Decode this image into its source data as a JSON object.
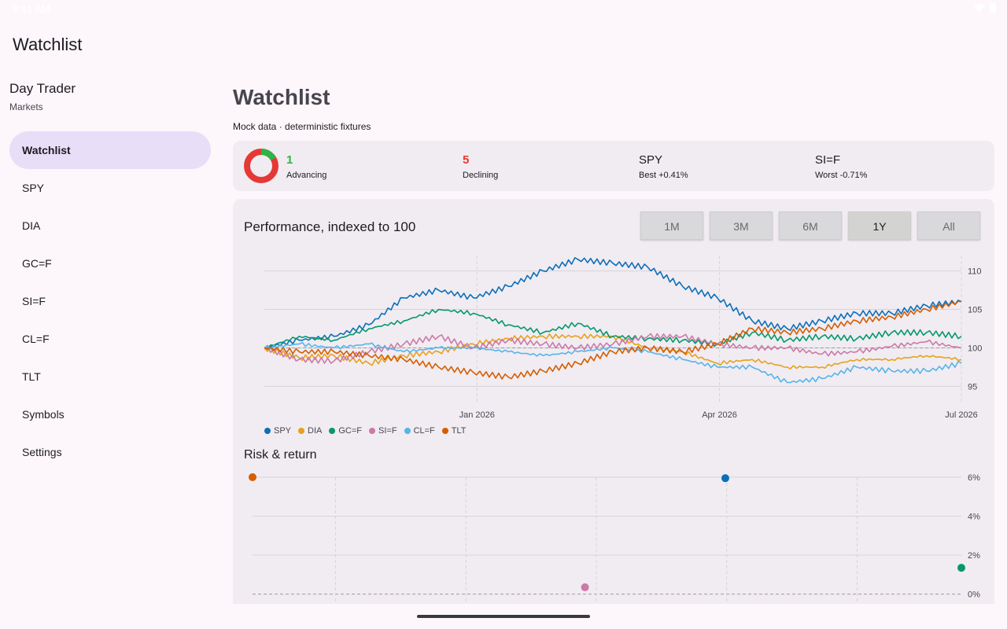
{
  "status_bar": {
    "clock": "9:41 AM"
  },
  "app_bar": {
    "title": "Watchlist"
  },
  "sidebar": {
    "title": "Day Trader",
    "subtitle": "Markets",
    "items": [
      {
        "label": "Watchlist",
        "active": true
      },
      {
        "label": "SPY"
      },
      {
        "label": "DIA"
      },
      {
        "label": "GC=F"
      },
      {
        "label": "SI=F"
      },
      {
        "label": "CL=F"
      },
      {
        "label": "TLT"
      },
      {
        "label": "Symbols"
      },
      {
        "label": "Settings"
      }
    ]
  },
  "page": {
    "title": "Watchlist",
    "subtitle": "Mock data · deterministic fixtures"
  },
  "summary": {
    "advancing": {
      "value": "1",
      "label": "Advancing"
    },
    "declining": {
      "value": "5",
      "label": "Declining"
    },
    "best": {
      "symbol": "SPY",
      "label": "Best +0.41%"
    },
    "worst": {
      "symbol": "SI=F",
      "label": "Worst -0.71%"
    },
    "donut_colors": {
      "advancing": "#2fb344",
      "declining": "#e53935"
    }
  },
  "performance": {
    "title": "Performance, indexed to 100",
    "ranges": [
      {
        "label": "1M"
      },
      {
        "label": "3M"
      },
      {
        "label": "6M"
      },
      {
        "label": "1Y",
        "active": true
      },
      {
        "label": "All"
      }
    ]
  },
  "risk": {
    "title": "Risk & return"
  },
  "colors": {
    "SPY": "#0d6fb8",
    "DIA": "#e6a21c",
    "GC=F": "#05986a",
    "SI=F": "#cc79a7",
    "CL=F": "#56b4e9",
    "TLT": "#d55e00"
  },
  "chart_data": [
    {
      "type": "line",
      "title": "Performance, indexed to 100",
      "x_ticks": [
        "Jan 2026",
        "Apr 2026",
        "Jul 2026"
      ],
      "y_ticks": [
        "95",
        "100",
        "105",
        "110"
      ],
      "ylim": [
        93,
        112
      ],
      "reference_line": 100,
      "legend_position": "bottom-left",
      "grid": true,
      "x_points": [
        0,
        0.05,
        0.1,
        0.15,
        0.2,
        0.25,
        0.3,
        0.35,
        0.4,
        0.45,
        0.5,
        0.55,
        0.6,
        0.65,
        0.7,
        0.75,
        0.8,
        0.85,
        0.9,
        0.95,
        1.0
      ],
      "series": [
        {
          "name": "SPY",
          "values": [
            100,
            101,
            101.5,
            103,
            106.5,
            107.5,
            106.5,
            108,
            110,
            111.5,
            111,
            110.5,
            108,
            106.5,
            103.5,
            102.5,
            103.5,
            104.5,
            104.5,
            105.5,
            106
          ]
        },
        {
          "name": "DIA",
          "values": [
            100,
            98.7,
            99,
            98,
            99,
            99.5,
            100.5,
            101.2,
            101.5,
            101.5,
            101.5,
            100,
            99.5,
            98,
            98.5,
            97.5,
            97.5,
            98.5,
            98.5,
            99,
            98.5
          ]
        },
        {
          "name": "GC=F",
          "values": [
            100,
            101.5,
            101,
            102.5,
            103.5,
            105,
            104.5,
            103,
            102,
            103.2,
            101.5,
            101.2,
            101,
            100.5,
            102,
            101,
            101.5,
            101.2,
            102,
            102,
            101.5
          ]
        },
        {
          "name": "SI=F",
          "values": [
            100,
            98.5,
            98.3,
            99.5,
            100.5,
            101.5,
            100,
            101,
            100.5,
            100,
            100.5,
            101.5,
            101.5,
            100.5,
            100,
            100,
            99.2,
            99.5,
            100.2,
            100.8,
            100
          ]
        },
        {
          "name": "CL=F",
          "values": [
            100,
            100.5,
            100,
            100.5,
            99.5,
            100,
            100,
            99.5,
            99,
            99.5,
            100,
            99.5,
            98.5,
            97.5,
            97.5,
            95.5,
            96,
            97.5,
            97,
            97,
            98
          ]
        },
        {
          "name": "TLT",
          "values": [
            100,
            99.5,
            99.5,
            99,
            98.5,
            97.5,
            96.8,
            96.2,
            97,
            98,
            99.5,
            100,
            99.5,
            100.5,
            102.5,
            102,
            102.5,
            103.5,
            104,
            105,
            106
          ]
        }
      ]
    },
    {
      "type": "scatter",
      "title": "Risk & return",
      "y_ticks": [
        "0%",
        "2%",
        "4%",
        "6%"
      ],
      "ylim": [
        -0.5,
        6.4
      ],
      "reference_line": 0,
      "grid": true,
      "points": [
        {
          "name": "TLT",
          "x": 0.0,
          "y": 6.0
        },
        {
          "name": "SPY",
          "x": 0.667,
          "y": 5.95
        },
        {
          "name": "SI=F",
          "x": 0.469,
          "y": 0.35
        },
        {
          "name": "GC=F",
          "x": 1.0,
          "y": 1.35
        }
      ]
    }
  ]
}
